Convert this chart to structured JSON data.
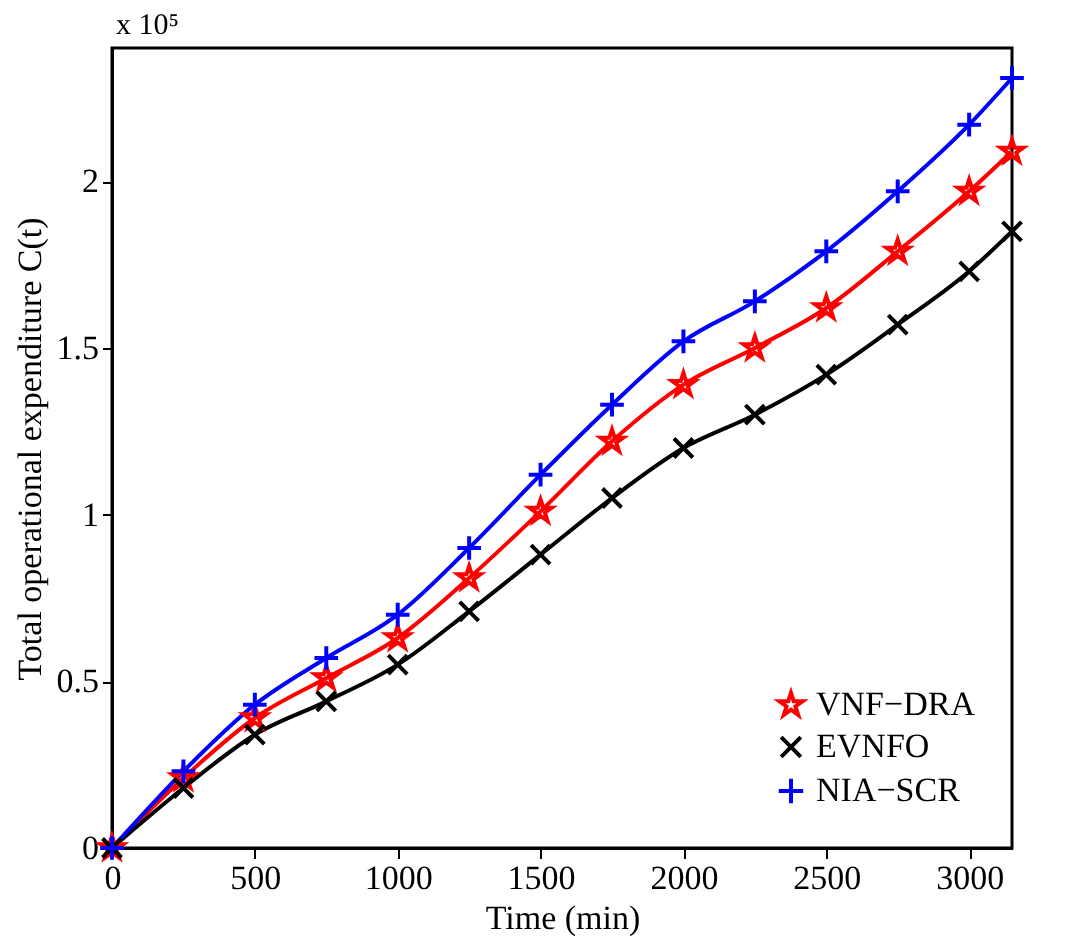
{
  "chart_data": {
    "type": "line",
    "xlabel": "Time (min)",
    "ylabel": "Total operational expenditure C(t)",
    "annotations": [
      "x 10⁵"
    ],
    "xlim": [
      0,
      3150
    ],
    "xticks": [
      0,
      500,
      1000,
      1500,
      2000,
      2500,
      3000
    ],
    "ylim": [
      0,
      2.4
    ],
    "yticks": [
      0,
      0.5,
      1,
      1.5,
      2
    ],
    "grid": false,
    "legend": "bottom right",
    "line_style": "solid",
    "series": [
      {
        "name": "VNF−DRA",
        "color": "#ff0000",
        "marker": "star",
        "x": [
          0,
          250,
          500,
          750,
          1000,
          1250,
          1500,
          1750,
          2000,
          2250,
          2500,
          2750,
          3000,
          3150
        ],
        "values": [
          0,
          0.21,
          0.39,
          0.51,
          0.63,
          0.81,
          1.01,
          1.22,
          1.39,
          1.5,
          1.62,
          1.79,
          1.97,
          2.09
        ]
      },
      {
        "name": "EVNFO",
        "color": "#000000",
        "marker": "cross",
        "x": [
          0,
          250,
          500,
          750,
          1000,
          1250,
          1500,
          1750,
          2000,
          2250,
          2500,
          2750,
          3000,
          3150
        ],
        "values": [
          0,
          0.18,
          0.34,
          0.44,
          0.55,
          0.71,
          0.88,
          1.05,
          1.2,
          1.3,
          1.42,
          1.57,
          1.73,
          1.85
        ]
      },
      {
        "name": "NIA−SCR",
        "color": "#0000ff",
        "marker": "plus",
        "x": [
          0,
          250,
          500,
          750,
          1000,
          1250,
          1500,
          1750,
          2000,
          2250,
          2500,
          2750,
          3000,
          3150
        ],
        "values": [
          0,
          0.23,
          0.43,
          0.57,
          0.7,
          0.9,
          1.12,
          1.33,
          1.52,
          1.64,
          1.79,
          1.97,
          2.17,
          2.31
        ]
      }
    ]
  }
}
